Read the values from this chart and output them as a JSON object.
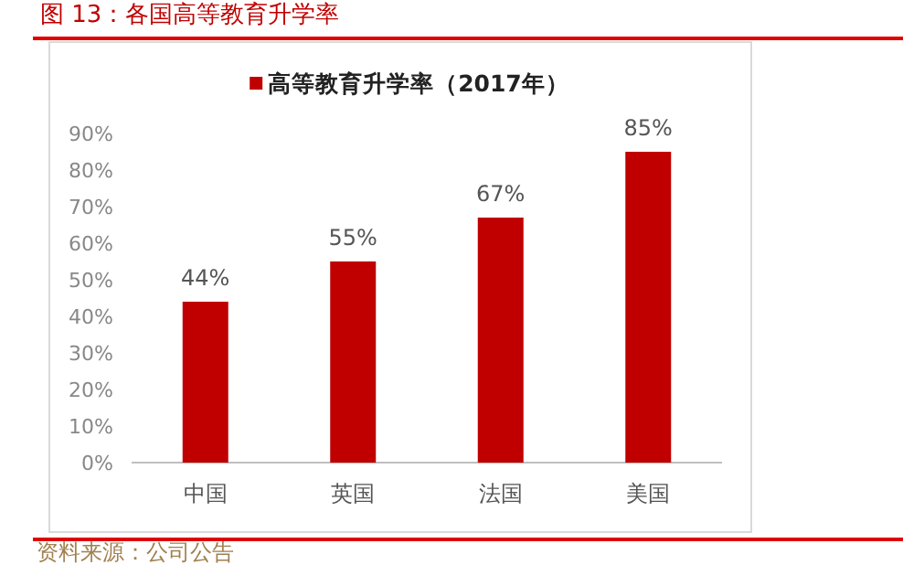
{
  "chart_data": {
    "type": "bar",
    "title": "图 13：各国高等教育升学率",
    "categories": [
      "中国",
      "英国",
      "法国",
      "美国"
    ],
    "series": [
      {
        "name": "高等教育升学率（2017年）",
        "color": "#c00000",
        "values": [
          44,
          55,
          67,
          85
        ],
        "value_labels": [
          "44%",
          "55%",
          "67%",
          "85%"
        ]
      }
    ],
    "ylim": [
      0,
      90
    ],
    "yticks": [
      {
        "value": 0,
        "label": "0%"
      },
      {
        "value": 10,
        "label": "10%"
      },
      {
        "value": 20,
        "label": "20%"
      },
      {
        "value": 30,
        "label": "30%"
      },
      {
        "value": 40,
        "label": "40%"
      },
      {
        "value": 50,
        "label": "50%"
      },
      {
        "value": 60,
        "label": "60%"
      },
      {
        "value": 70,
        "label": "70%"
      },
      {
        "value": 80,
        "label": "80%"
      },
      {
        "value": 90,
        "label": "90%"
      }
    ],
    "legend": "top",
    "grid": false,
    "annotations": [
      "资料来源：公司公告"
    ]
  }
}
